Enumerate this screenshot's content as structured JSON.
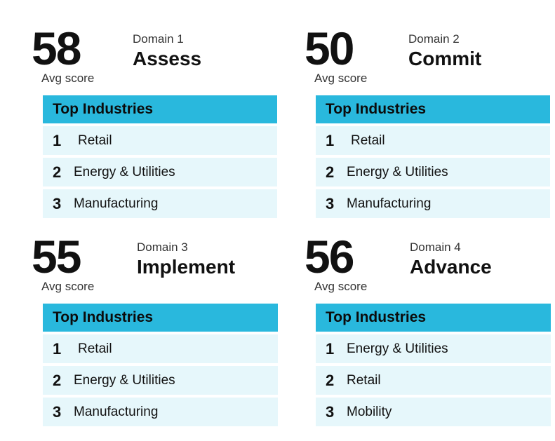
{
  "panels": [
    {
      "score": "58",
      "avg_label": "Avg score",
      "domain_label": "Domain 1",
      "domain_name": "Assess",
      "table_header": "Top Industries",
      "rows": [
        {
          "rank": "1",
          "industry": "Retail"
        },
        {
          "rank": "2",
          "industry": "Energy & Utilities"
        },
        {
          "rank": "3",
          "industry": "Manufacturing"
        }
      ]
    },
    {
      "score": "50",
      "avg_label": "Avg score",
      "domain_label": "Domain 2",
      "domain_name": "Commit",
      "table_header": "Top Industries",
      "rows": [
        {
          "rank": "1",
          "industry": "Retail"
        },
        {
          "rank": "2",
          "industry": "Energy & Utilities"
        },
        {
          "rank": "3",
          "industry": "Manufacturing"
        }
      ]
    },
    {
      "score": "55",
      "avg_label": "Avg score",
      "domain_label": "Domain 3",
      "domain_name": "Implement",
      "table_header": "Top Industries",
      "rows": [
        {
          "rank": "1",
          "industry": "Retail"
        },
        {
          "rank": "2",
          "industry": "Energy & Utilities"
        },
        {
          "rank": "3",
          "industry": "Manufacturing"
        }
      ]
    },
    {
      "score": "56",
      "avg_label": "Avg score",
      "domain_label": "Domain 4",
      "domain_name": "Advance",
      "table_header": "Top Industries",
      "rows": [
        {
          "rank": "1",
          "industry": "Energy & Utilities"
        },
        {
          "rank": "2",
          "industry": "Retail"
        },
        {
          "rank": "3",
          "industry": "Mobility"
        }
      ]
    }
  ]
}
